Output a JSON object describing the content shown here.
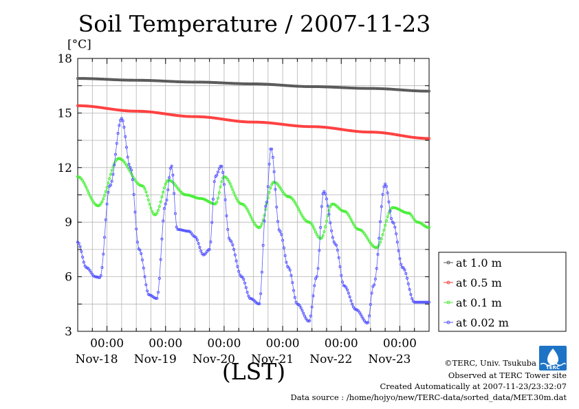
{
  "chart_data": {
    "type": "line",
    "title": "Soil Temperature / 2007-11-23",
    "ylabel": "[°C]",
    "xlabel": "(LST)",
    "ylim": [
      3,
      18
    ],
    "yticks": [
      3,
      6,
      9,
      12,
      15,
      18
    ],
    "x_range_days": [
      17.5,
      23.5
    ],
    "xtick_time_label": "00:00",
    "xtick_dates": [
      "Nov-18",
      "Nov-19",
      "Nov-20",
      "Nov-21",
      "Nov-22",
      "Nov-23"
    ],
    "grid": true,
    "legend_position": "right",
    "series": [
      {
        "name": "at 1.0 m",
        "color": "#555555",
        "x": [
          17.5,
          18.5,
          19.5,
          20.5,
          21.5,
          22.5,
          23.5
        ],
        "y": [
          16.9,
          16.8,
          16.7,
          16.6,
          16.45,
          16.35,
          16.2
        ]
      },
      {
        "name": "at 0.5 m",
        "color": "#ff3b3b",
        "x": [
          17.5,
          18.5,
          19.5,
          20.5,
          21.5,
          22.5,
          23.5
        ],
        "y": [
          15.4,
          15.1,
          14.8,
          14.5,
          14.25,
          13.95,
          13.6
        ]
      },
      {
        "name": "at 0.1 m",
        "color": "#44ee33",
        "x": [
          17.5,
          17.85,
          18.2,
          18.6,
          18.82,
          19.05,
          19.35,
          19.6,
          19.85,
          20.0,
          20.3,
          20.6,
          20.85,
          21.1,
          21.45,
          21.65,
          21.85,
          22.05,
          22.3,
          22.6,
          22.88,
          23.15,
          23.3,
          23.5
        ],
        "y": [
          11.5,
          9.9,
          12.5,
          11.0,
          9.4,
          11.3,
          10.5,
          10.3,
          10.0,
          11.5,
          10.0,
          8.7,
          11.2,
          10.4,
          9.0,
          8.1,
          10.0,
          9.6,
          8.6,
          7.6,
          9.8,
          9.5,
          9.0,
          8.7
        ]
      },
      {
        "name": "at 0.02 m",
        "color": "#5555ff",
        "x": [
          17.5,
          17.65,
          17.8,
          17.88,
          18.05,
          18.25,
          18.4,
          18.55,
          18.72,
          18.85,
          19.0,
          19.1,
          19.2,
          19.4,
          19.5,
          19.65,
          19.75,
          19.85,
          19.95,
          20.1,
          20.3,
          20.45,
          20.6,
          20.72,
          20.8,
          20.95,
          21.1,
          21.25,
          21.45,
          21.58,
          21.7,
          21.9,
          22.05,
          22.25,
          22.45,
          22.55,
          22.75,
          22.88,
          23.05,
          23.25,
          23.38,
          23.5
        ],
        "y": [
          7.9,
          6.5,
          6.0,
          5.95,
          11.0,
          14.7,
          12.0,
          7.5,
          5.0,
          4.8,
          10.0,
          12.1,
          8.6,
          8.5,
          8.2,
          7.2,
          7.5,
          11.5,
          12.1,
          8.0,
          6.0,
          4.8,
          4.5,
          10.0,
          13.1,
          8.5,
          6.5,
          4.5,
          3.55,
          6.0,
          10.7,
          7.8,
          5.5,
          4.2,
          3.45,
          5.5,
          11.1,
          9.0,
          6.5,
          4.6,
          4.6,
          4.6
        ]
      }
    ]
  },
  "footer": {
    "copyright": "©TERC, Univ. Tsukuba",
    "observed": "Observed at TERC Tower site",
    "created": "Created Automatically at 2007-11-23/23:32:07",
    "source": "Data source : /home/hojyo/new/TERC-data/sorted_data/MET.30m.dat",
    "logo_text": "TERC"
  }
}
